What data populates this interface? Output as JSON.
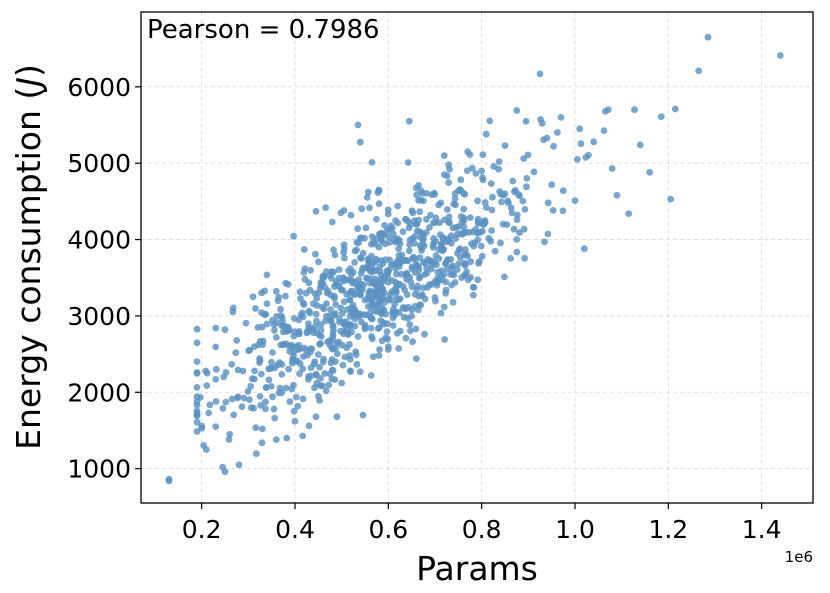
{
  "chart_data": {
    "type": "scatter",
    "annotation": "Pearson = 0.7986",
    "xlabel": "Params",
    "ylabel_main": "Energy consumption (",
    "ylabel_unit": "J",
    "ylabel_close": ")",
    "x_offset_label": "1e6",
    "xlim": [
      0.07,
      1.51
    ],
    "ylim": [
      550,
      6980
    ],
    "x_ticks": [
      0.2,
      0.4,
      0.6,
      0.8,
      1.0,
      1.2,
      1.4
    ],
    "x_tick_labels": [
      "0.2",
      "0.4",
      "0.6",
      "0.8",
      "1.0",
      "1.2",
      "1.4"
    ],
    "y_ticks": [
      1000,
      2000,
      3000,
      4000,
      5000,
      6000
    ],
    "y_tick_labels": [
      "1000",
      "2000",
      "3000",
      "4000",
      "5000",
      "6000"
    ],
    "grid": true,
    "marker_color": "#5b93c2",
    "pearson": 0.7986,
    "n_points": 1000,
    "points": [
      [
        0.13,
        840
      ],
      [
        0.13,
        860
      ],
      [
        1.285,
        6650
      ],
      [
        1.44,
        6410
      ],
      [
        1.265,
        6210
      ],
      [
        0.925,
        6170
      ],
      [
        1.215,
        5710
      ],
      [
        1.185,
        5610
      ],
      [
        0.645,
        5550
      ],
      [
        0.535,
        5500
      ],
      [
        0.54,
        5275
      ],
      [
        0.565,
        5010
      ],
      [
        0.97,
        5600
      ],
      [
        1.065,
        5680
      ],
      [
        0.875,
        5690
      ],
      [
        1.01,
        5450
      ],
      [
        1.04,
        5280
      ],
      [
        1.14,
        5240
      ],
      [
        1.16,
        4880
      ],
      [
        1.115,
        4340
      ],
      [
        1.09,
        4580
      ],
      [
        1.205,
        4530
      ],
      [
        1.005,
        5050
      ],
      [
        0.21,
        1250
      ],
      [
        0.245,
        1020
      ],
      [
        0.25,
        960
      ],
      [
        0.28,
        1050
      ],
      [
        0.36,
        1380
      ],
      [
        0.19,
        1700
      ],
      [
        0.2,
        1560
      ],
      [
        0.2,
        1530
      ],
      [
        0.215,
        1730
      ],
      [
        0.23,
        1550
      ],
      [
        0.26,
        1450
      ],
      [
        0.33,
        1520
      ],
      [
        0.355,
        1780
      ],
      [
        0.4,
        1620
      ],
      [
        0.43,
        1560
      ],
      [
        0.445,
        1680
      ],
      [
        0.49,
        1680
      ],
      [
        0.23,
        2170
      ],
      [
        0.23,
        2840
      ],
      [
        0.25,
        2820
      ],
      [
        0.275,
        2680
      ],
      [
        0.31,
        3250
      ],
      [
        0.34,
        3160
      ],
      [
        0.38,
        3430
      ],
      [
        0.42,
        3870
      ],
      [
        0.445,
        4370
      ],
      [
        0.48,
        4230
      ],
      [
        0.505,
        4380
      ],
      [
        0.52,
        4320
      ],
      [
        0.58,
        4640
      ],
      [
        0.62,
        4440
      ],
      [
        0.67,
        4640
      ],
      [
        0.72,
        4850
      ],
      [
        0.72,
        5100
      ],
      [
        0.77,
        5150
      ],
      [
        0.81,
        5380
      ],
      [
        0.85,
        5230
      ],
      [
        0.89,
        5060
      ],
      [
        0.94,
        5330
      ],
      [
        0.95,
        4720
      ],
      [
        0.975,
        4640
      ],
      [
        1.0,
        4510
      ],
      [
        1.02,
        3880
      ],
      [
        0.66,
        2440
      ],
      [
        0.6,
        2560
      ],
      [
        0.53,
        2530
      ],
      [
        0.48,
        2290
      ],
      [
        0.5,
        2120
      ],
      [
        0.58,
        2480
      ]
    ]
  }
}
